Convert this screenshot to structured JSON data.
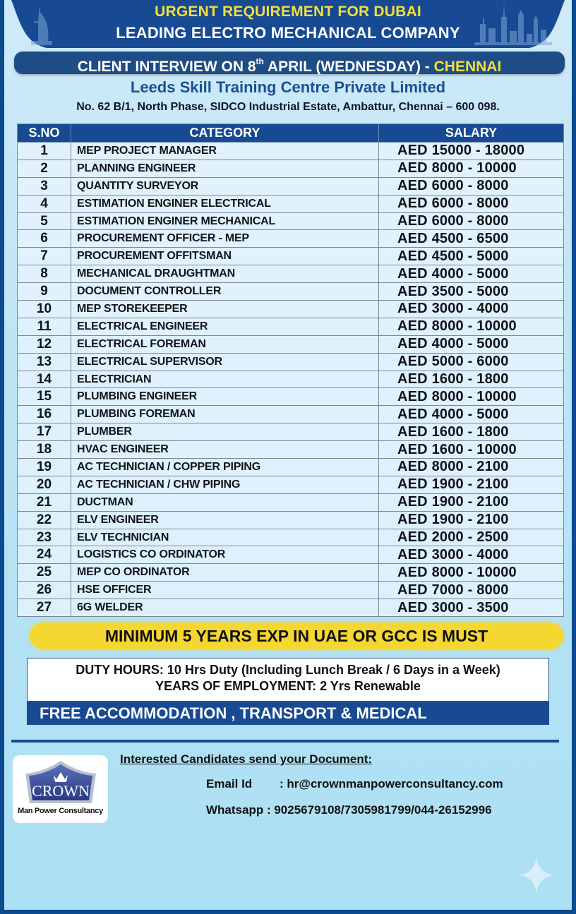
{
  "header": {
    "line1": "URGENT REQUIREMENT FOR DUBAI",
    "line2": "LEADING ELECTRO MECHANICAL COMPANY",
    "interview_prefix": "CLIENT INTERVIEW ON 8",
    "interview_sup": "th",
    "interview_suffix": " APRIL (WEDNESDAY) - ",
    "interview_city": "CHENNAI",
    "company": "Leeds Skill Training Centre Private Limited",
    "address": "No. 62 B/1, North Phase, SIDCO Industrial Estate, Ambattur, Chennai – 600 098."
  },
  "table": {
    "columns": [
      "S.NO",
      "CATEGORY",
      "SALARY"
    ],
    "rows": [
      {
        "sno": "1",
        "category": "MEP PROJECT MANAGER",
        "salary": "AED 15000 - 18000"
      },
      {
        "sno": "2",
        "category": "PLANNING ENGINEER",
        "salary": "AED 8000 - 10000"
      },
      {
        "sno": "3",
        "category": "QUANTITY SURVEYOR",
        "salary": "AED 6000 - 8000"
      },
      {
        "sno": "4",
        "category": "ESTIMATION ENGINER ELECTRICAL",
        "salary": "AED 6000 - 8000"
      },
      {
        "sno": "5",
        "category": "ESTIMATION ENGINER MECHANICAL",
        "salary": "AED 6000 - 8000"
      },
      {
        "sno": "6",
        "category": "PROCUREMENT OFFICER - MEP",
        "salary": "AED 4500 - 6500"
      },
      {
        "sno": "7",
        "category": "PROCUREMENT OFFITSMAN",
        "salary": "AED 4500 - 5000"
      },
      {
        "sno": "8",
        "category": "MECHANICAL DRAUGHTMAN",
        "salary": "AED 4000 - 5000"
      },
      {
        "sno": "9",
        "category": "DOCUMENT CONTROLLER",
        "salary": "AED 3500 - 5000"
      },
      {
        "sno": "10",
        "category": "MEP STOREKEEPER",
        "salary": "AED 3000 - 4000"
      },
      {
        "sno": "11",
        "category": "ELECTRICAL ENGINEER",
        "salary": "AED 8000 - 10000"
      },
      {
        "sno": "12",
        "category": "ELECTRICAL FOREMAN",
        "salary": "AED 4000 - 5000"
      },
      {
        "sno": "13",
        "category": "ELECTRICAL SUPERVISOR",
        "salary": "AED 5000 - 6000"
      },
      {
        "sno": "14",
        "category": "ELECTRICIAN",
        "salary": "AED 1600 - 1800"
      },
      {
        "sno": "15",
        "category": "PLUMBING ENGINEER",
        "salary": "AED 8000 - 10000"
      },
      {
        "sno": "16",
        "category": "PLUMBING FOREMAN",
        "salary": "AED 4000 - 5000"
      },
      {
        "sno": "17",
        "category": "PLUMBER",
        "salary": "AED 1600 - 1800"
      },
      {
        "sno": "18",
        "category": "HVAC ENGINEER",
        "salary": "AED 1600 - 10000"
      },
      {
        "sno": "19",
        "category": "AC TECHNICIAN / COPPER PIPING",
        "salary": "AED 8000 - 2100"
      },
      {
        "sno": "20",
        "category": "AC TECHNICIAN / CHW PIPING",
        "salary": "AED 1900 - 2100"
      },
      {
        "sno": "21",
        "category": "DUCTMAN",
        "salary": "AED 1900 - 2100"
      },
      {
        "sno": "22",
        "category": "ELV ENGINEER",
        "salary": "AED 1900 - 2100"
      },
      {
        "sno": "23",
        "category": "ELV TECHNICIAN",
        "salary": "AED 2000 - 2500"
      },
      {
        "sno": "24",
        "category": "LOGISTICS CO ORDINATOR",
        "salary": "AED 3000 - 4000"
      },
      {
        "sno": "25",
        "category": "MEP CO ORDINATOR",
        "salary": "AED 8000 - 10000"
      },
      {
        "sno": "26",
        "category": "HSE OFFICER",
        "salary": "AED 7000 - 8000"
      },
      {
        "sno": "27",
        "category": "6G WELDER",
        "salary": "AED 3000 - 3500"
      }
    ]
  },
  "requirement": "MINIMUM 5 YEARS EXP IN UAE OR GCC IS MUST",
  "terms": {
    "duty_hours": "DUTY HOURS: 10 Hrs Duty (Including Lunch Break / 6 Days in a Week)",
    "employment": "YEARS OF EMPLOYMENT: 2 Yrs Renewable",
    "benefits": "FREE ACCOMMODATION , TRANSPORT & MEDICAL"
  },
  "contact": {
    "heading": "Interested Candidates send your Document:",
    "email_label": "Email Id",
    "email_value": ": hr@crownmanpowerconsultancy.com",
    "whatsapp_label": "Whatsapp",
    "whatsapp_value": " : 9025679108/7305981799/044-26152996"
  },
  "logo": {
    "name": "CROWN",
    "subtitle": "Man Power Consultancy"
  },
  "colors": {
    "brand_blue": "#174a93",
    "accent_yellow": "#f5d731",
    "background": "#bfe4f6"
  }
}
